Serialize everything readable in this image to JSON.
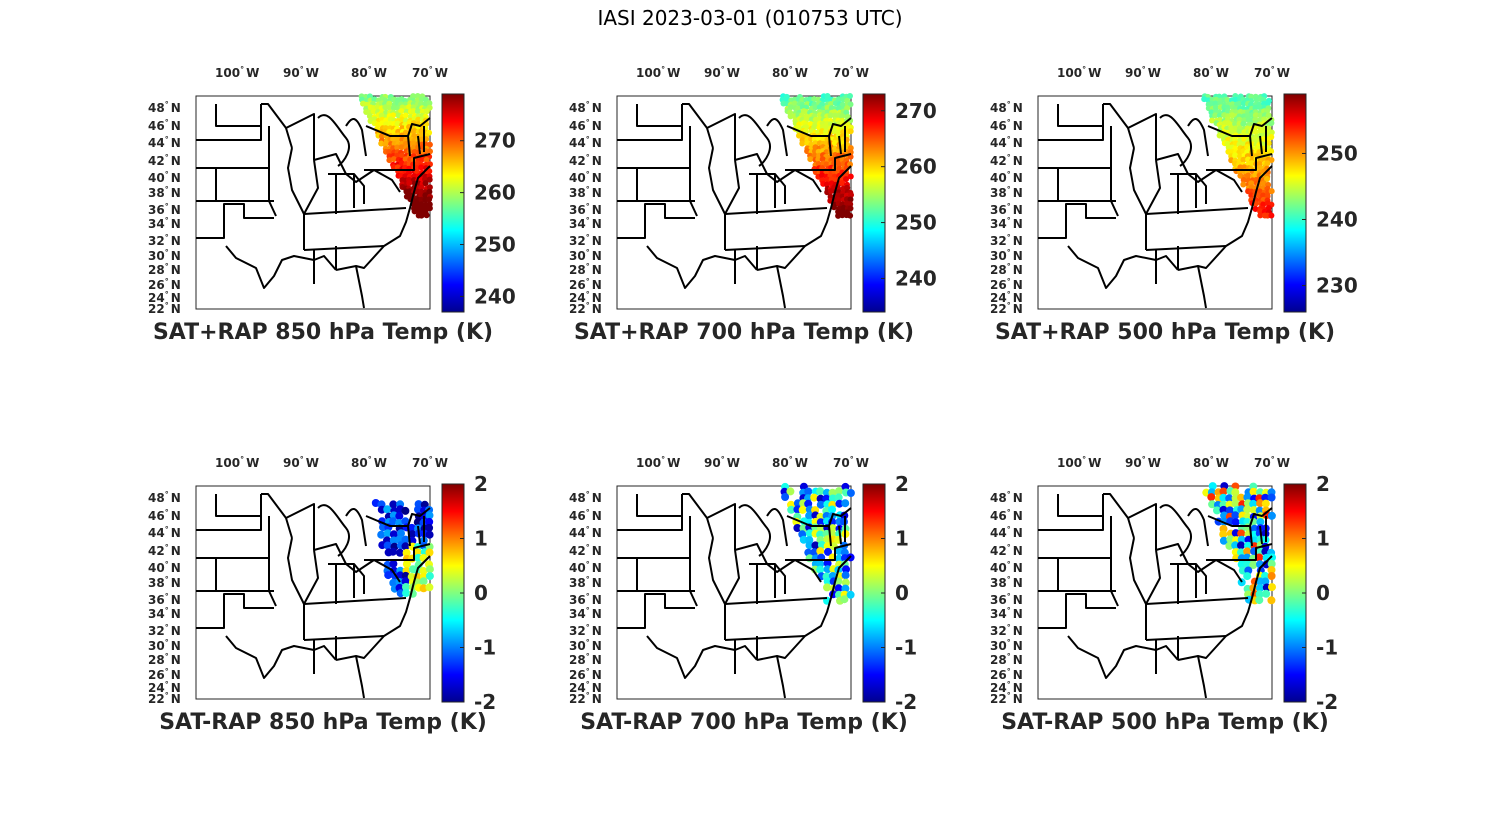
{
  "title": "IASI 2023-03-01 (010753 UTC)",
  "lon_labels": [
    "100",
    "90",
    "80",
    "70"
  ],
  "lon_suffix": "W",
  "lat_labels": [
    "48",
    "46",
    "44",
    "42",
    "40",
    "38",
    "36",
    "34",
    "32",
    "30",
    "28",
    "26",
    "24",
    "22"
  ],
  "lat_suffix": "N",
  "degree_symbol": "°",
  "panels": [
    {
      "title": "SAT+RAP 850 hPa Temp (K)",
      "colorbar_ticks": [
        "270",
        "260",
        "250",
        "240"
      ],
      "colorbar_range": [
        237,
        279
      ],
      "kind": "temp850"
    },
    {
      "title": "SAT+RAP 700 hPa Temp (K)",
      "colorbar_ticks": [
        "270",
        "260",
        "250",
        "240"
      ],
      "colorbar_range": [
        234,
        273
      ],
      "kind": "temp700"
    },
    {
      "title": "SAT+RAP 500 hPa Temp (K)",
      "colorbar_ticks": [
        "250",
        "240",
        "230"
      ],
      "colorbar_range": [
        226,
        259
      ],
      "kind": "temp500"
    },
    {
      "title": "SAT-RAP 850 hPa Temp (K)",
      "colorbar_ticks": [
        "2",
        "1",
        "0",
        "-1",
        "-2"
      ],
      "colorbar_range": [
        -2,
        2
      ],
      "kind": "diff850"
    },
    {
      "title": "SAT-RAP 700 hPa Temp (K)",
      "colorbar_ticks": [
        "2",
        "1",
        "0",
        "-1",
        "-2"
      ],
      "colorbar_range": [
        -2,
        2
      ],
      "kind": "diff700"
    },
    {
      "title": "SAT-RAP 500 hPa Temp (K)",
      "colorbar_ticks": [
        "2",
        "1",
        "0",
        "-1",
        "-2"
      ],
      "colorbar_range": [
        -2,
        2
      ],
      "kind": "diff500"
    }
  ],
  "colormap": "jet"
}
